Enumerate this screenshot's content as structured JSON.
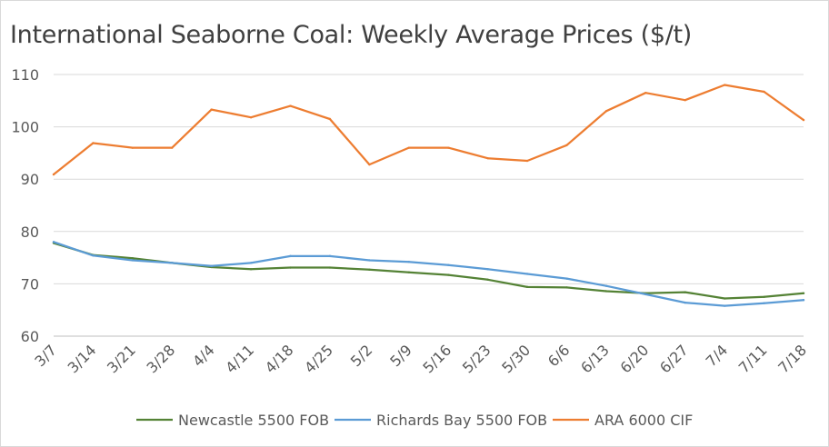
{
  "chart_data": {
    "type": "line",
    "title": "International Seaborne Coal: Weekly Average Prices ($/t)",
    "xlabel": "",
    "ylabel": "",
    "ylim": [
      60,
      110
    ],
    "yticks": [
      60,
      70,
      80,
      90,
      100,
      110
    ],
    "grid": true,
    "legend_position": "bottom",
    "x": [
      "3/7",
      "3/14",
      "3/21",
      "3/28",
      "4/4",
      "4/11",
      "4/18",
      "4/25",
      "5/2",
      "5/9",
      "5/16",
      "5/23",
      "5/30",
      "6/6",
      "6/13",
      "6/20",
      "6/27",
      "7/4",
      "7/11",
      "7/18"
    ],
    "series": [
      {
        "name": "Newcastle 5500 FOB",
        "color": "#548235",
        "values": [
          77.8,
          75.5,
          74.9,
          74.0,
          73.2,
          72.8,
          73.1,
          73.1,
          72.7,
          72.2,
          71.7,
          70.8,
          69.4,
          69.3,
          68.6,
          68.2,
          68.4,
          67.2,
          67.5,
          68.2
        ]
      },
      {
        "name": "Richards Bay 5500 FOB",
        "color": "#5b9bd5",
        "values": [
          78.0,
          75.4,
          74.5,
          74.0,
          73.4,
          74.0,
          75.3,
          75.3,
          74.5,
          74.2,
          73.6,
          72.8,
          71.9,
          71.0,
          69.6,
          68.0,
          66.4,
          65.8,
          66.3,
          66.9
        ]
      },
      {
        "name": "ARA 6000 CIF",
        "color": "#ed7d31",
        "values": [
          90.9,
          96.9,
          96.0,
          96.0,
          103.3,
          101.8,
          104.0,
          101.5,
          92.8,
          96.0,
          96.0,
          94.0,
          93.5,
          96.5,
          103.0,
          106.5,
          105.1,
          108.0,
          106.7,
          101.3
        ]
      }
    ]
  }
}
